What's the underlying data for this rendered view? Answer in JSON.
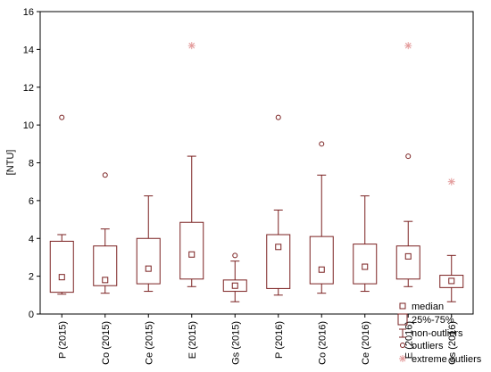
{
  "chart_data": {
    "type": "boxplot",
    "ylabel": "[NTU]",
    "ylim": [
      0,
      16
    ],
    "yticks": [
      0,
      2,
      4,
      6,
      8,
      10,
      12,
      14,
      16
    ],
    "grid": false,
    "legend_placement": "bottom-right",
    "colors": {
      "box": "#7a2020",
      "extreme": "#e39a9a"
    },
    "categories": [
      "P (2015)",
      "Co (2015)",
      "Ce (2015)",
      "E (2015)",
      "Gs (2015)",
      "P (2016)",
      "Co (2016)",
      "Ce (2016)",
      "E (2016)",
      "Gs (2016)"
    ],
    "boxes": [
      {
        "median": 1.95,
        "q1": 1.15,
        "q3": 3.85,
        "min": 1.05,
        "max": 4.2,
        "outliers": [
          10.4
        ],
        "extremes": []
      },
      {
        "median": 1.8,
        "q1": 1.5,
        "q3": 3.6,
        "min": 1.1,
        "max": 4.5,
        "outliers": [
          7.35
        ],
        "extremes": []
      },
      {
        "median": 2.4,
        "q1": 1.6,
        "q3": 4.0,
        "min": 1.2,
        "max": 6.25,
        "outliers": [],
        "extremes": []
      },
      {
        "median": 3.15,
        "q1": 1.85,
        "q3": 4.85,
        "min": 1.45,
        "max": 8.35,
        "outliers": [],
        "extremes": [
          14.2
        ]
      },
      {
        "median": 1.5,
        "q1": 1.2,
        "q3": 1.8,
        "min": 0.65,
        "max": 2.8,
        "outliers": [
          3.1
        ],
        "extremes": []
      },
      {
        "median": 3.55,
        "q1": 1.35,
        "q3": 4.2,
        "min": 1.0,
        "max": 5.5,
        "outliers": [
          10.4
        ],
        "extremes": []
      },
      {
        "median": 2.35,
        "q1": 1.6,
        "q3": 4.1,
        "min": 1.1,
        "max": 7.35,
        "outliers": [
          9.0
        ],
        "extremes": []
      },
      {
        "median": 2.5,
        "q1": 1.6,
        "q3": 3.7,
        "min": 1.2,
        "max": 6.25,
        "outliers": [],
        "extremes": []
      },
      {
        "median": 3.05,
        "q1": 1.85,
        "q3": 3.6,
        "min": 1.45,
        "max": 4.9,
        "outliers": [
          8.35
        ],
        "extremes": [
          14.2
        ]
      },
      {
        "median": 1.75,
        "q1": 1.4,
        "q3": 2.05,
        "min": 0.65,
        "max": 3.1,
        "outliers": [],
        "extremes": [
          7.0
        ]
      }
    ],
    "legend": {
      "median": "median",
      "box": "25%-75%",
      "whisker": "non-outliers",
      "outlier": "outliers",
      "extreme": "extreme outliers"
    }
  }
}
